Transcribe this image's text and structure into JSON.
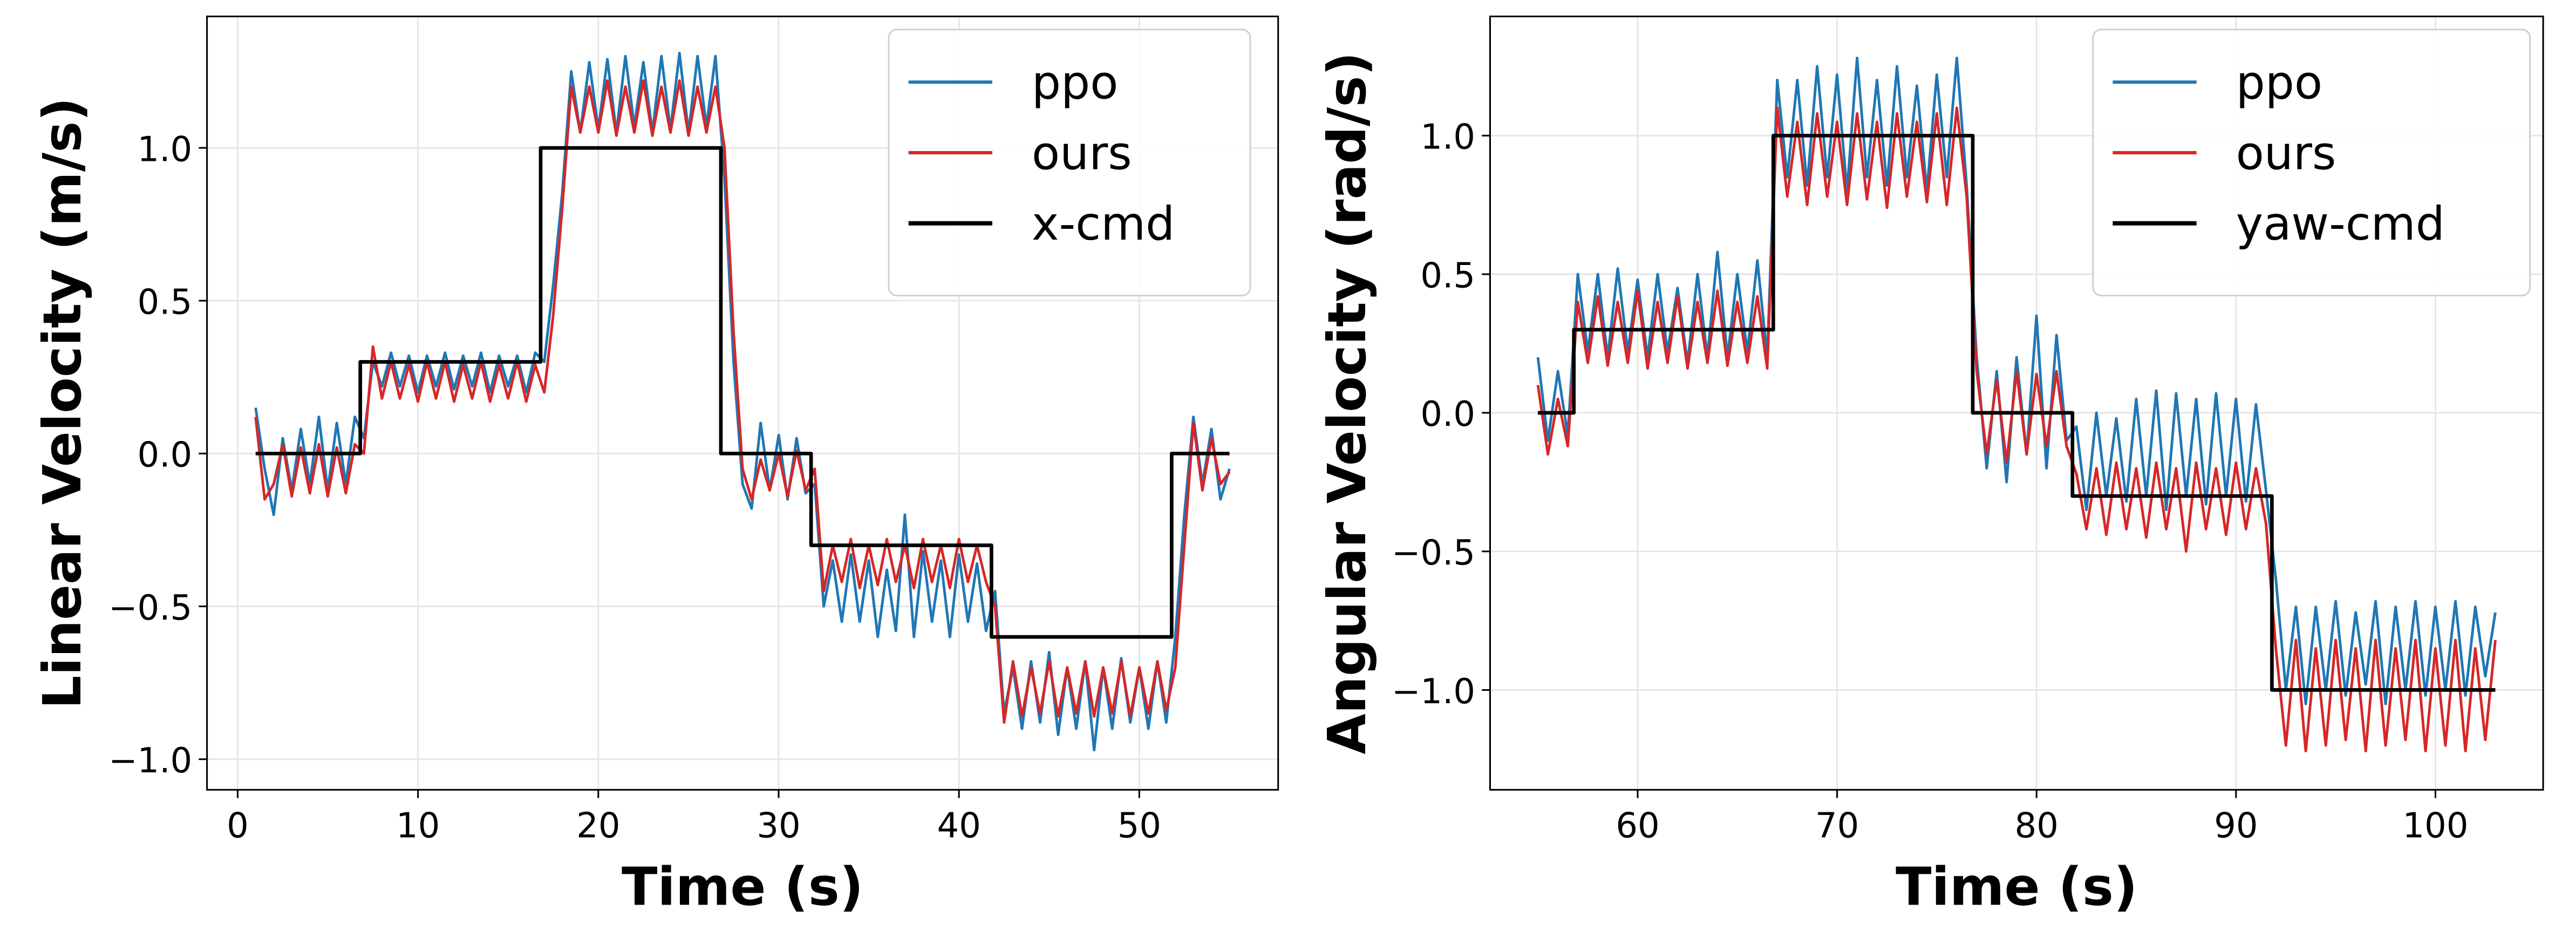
{
  "chart_data": [
    {
      "type": "line",
      "xlabel": "Time (s)",
      "ylabel": "Linear Velocity (m/s)",
      "xlim": [
        -1.7,
        57.7
      ],
      "ylim": [
        -1.1,
        1.43
      ],
      "grid": true,
      "legend_position": "top-right",
      "xticks": [
        0,
        10,
        20,
        30,
        40,
        50
      ],
      "xtick_labels": [
        "0",
        "10",
        "20",
        "30",
        "40",
        "50"
      ],
      "yticks": [
        -1.0,
        -0.5,
        0.0,
        0.5,
        1.0
      ],
      "ytick_labels": [
        "−1.0",
        "−0.5",
        "0.0",
        "0.5",
        "1.0"
      ],
      "x": [
        1,
        1.5,
        2,
        2.5,
        3,
        3.5,
        4,
        4.5,
        5,
        5.5,
        6,
        6.5,
        7,
        7.5,
        8,
        8.5,
        9,
        9.5,
        10,
        10.5,
        11,
        11.5,
        12,
        12.5,
        13,
        13.5,
        14,
        14.5,
        15,
        15.5,
        16,
        16.5,
        17,
        17.5,
        18,
        18.5,
        19,
        19.5,
        20,
        20.5,
        21,
        21.5,
        22,
        22.5,
        23,
        23.5,
        24,
        24.5,
        25,
        25.5,
        26,
        26.5,
        27,
        27.5,
        28,
        28.5,
        29,
        29.5,
        30,
        30.5,
        31,
        31.5,
        32,
        32.5,
        33,
        33.5,
        34,
        34.5,
        35,
        35.5,
        36,
        36.5,
        37,
        37.5,
        38,
        38.5,
        39,
        39.5,
        40,
        40.5,
        41,
        41.5,
        42,
        42.5,
        43,
        43.5,
        44,
        44.5,
        45,
        45.5,
        46,
        46.5,
        47,
        47.5,
        48,
        48.5,
        49,
        49.5,
        50,
        50.5,
        51,
        51.5,
        52,
        52.5,
        53,
        53.5,
        54,
        54.5,
        55
      ],
      "series": [
        {
          "name": "ppo",
          "color": "#1f77b4",
          "values": [
            0.15,
            -0.05,
            -0.2,
            0.05,
            -0.12,
            0.08,
            -0.1,
            0.12,
            -0.12,
            0.1,
            -0.1,
            0.12,
            0.05,
            0.3,
            0.22,
            0.33,
            0.22,
            0.32,
            0.2,
            0.32,
            0.22,
            0.33,
            0.21,
            0.32,
            0.22,
            0.33,
            0.2,
            0.32,
            0.22,
            0.32,
            0.2,
            0.33,
            0.3,
            0.55,
            0.85,
            1.25,
            1.05,
            1.28,
            1.06,
            1.29,
            1.05,
            1.3,
            1.07,
            1.28,
            1.05,
            1.3,
            1.06,
            1.31,
            1.05,
            1.3,
            1.07,
            1.3,
            0.9,
            0.3,
            -0.1,
            -0.18,
            0.1,
            -0.12,
            0.06,
            -0.15,
            0.05,
            -0.13,
            -0.1,
            -0.5,
            -0.35,
            -0.55,
            -0.33,
            -0.55,
            -0.35,
            -0.6,
            -0.38,
            -0.58,
            -0.2,
            -0.6,
            -0.32,
            -0.55,
            -0.35,
            -0.6,
            -0.33,
            -0.55,
            -0.36,
            -0.58,
            -0.45,
            -0.85,
            -0.7,
            -0.9,
            -0.68,
            -0.88,
            -0.65,
            -0.92,
            -0.7,
            -0.9,
            -0.68,
            -0.97,
            -0.7,
            -0.9,
            -0.67,
            -0.88,
            -0.7,
            -0.9,
            -0.68,
            -0.88,
            -0.6,
            -0.2,
            0.12,
            -0.1,
            0.08,
            -0.15,
            -0.05
          ]
        },
        {
          "name": "ours",
          "color": "#d62728",
          "values": [
            0.12,
            -0.15,
            -0.1,
            0.03,
            -0.14,
            0.02,
            -0.13,
            0.03,
            -0.14,
            0.02,
            -0.13,
            0.03,
            0.0,
            0.35,
            0.18,
            0.3,
            0.18,
            0.29,
            0.17,
            0.3,
            0.18,
            0.3,
            0.17,
            0.29,
            0.18,
            0.3,
            0.17,
            0.29,
            0.18,
            0.3,
            0.17,
            0.29,
            0.2,
            0.45,
            0.8,
            1.2,
            1.05,
            1.2,
            1.05,
            1.22,
            1.04,
            1.2,
            1.05,
            1.22,
            1.04,
            1.2,
            1.05,
            1.22,
            1.04,
            1.2,
            1.05,
            1.2,
            1.0,
            0.4,
            -0.05,
            -0.15,
            -0.02,
            -0.12,
            0.0,
            -0.14,
            0.01,
            -0.12,
            -0.05,
            -0.45,
            -0.3,
            -0.42,
            -0.28,
            -0.44,
            -0.3,
            -0.43,
            -0.28,
            -0.42,
            -0.3,
            -0.44,
            -0.28,
            -0.42,
            -0.3,
            -0.44,
            -0.28,
            -0.42,
            -0.3,
            -0.42,
            -0.5,
            -0.88,
            -0.68,
            -0.86,
            -0.7,
            -0.85,
            -0.68,
            -0.86,
            -0.7,
            -0.85,
            -0.68,
            -0.86,
            -0.7,
            -0.85,
            -0.68,
            -0.86,
            -0.7,
            -0.85,
            -0.68,
            -0.84,
            -0.7,
            -0.3,
            0.1,
            -0.12,
            0.05,
            -0.1,
            -0.06
          ]
        },
        {
          "name": "x-cmd",
          "color": "#000000",
          "step": true,
          "points": [
            [
              1,
              0
            ],
            [
              6.8,
              0
            ],
            [
              6.8,
              0.3
            ],
            [
              16.8,
              0.3
            ],
            [
              16.8,
              1.0
            ],
            [
              26.8,
              1.0
            ],
            [
              26.8,
              0
            ],
            [
              31.8,
              0
            ],
            [
              31.8,
              -0.3
            ],
            [
              41.8,
              -0.3
            ],
            [
              41.8,
              -0.6
            ],
            [
              51.8,
              -0.6
            ],
            [
              51.8,
              0
            ],
            [
              55,
              0
            ]
          ]
        }
      ]
    },
    {
      "type": "line",
      "xlabel": "Time (s)",
      "ylabel": "Angular Velocity (rad/s)",
      "xlim": [
        52.6,
        105.4
      ],
      "ylim": [
        -1.36,
        1.43
      ],
      "grid": true,
      "legend_position": "top-right",
      "xticks": [
        60,
        70,
        80,
        90,
        100
      ],
      "xtick_labels": [
        "60",
        "70",
        "80",
        "90",
        "100"
      ],
      "yticks": [
        -1.0,
        -0.5,
        0.0,
        0.5,
        1.0
      ],
      "ytick_labels": [
        "−1.0",
        "−0.5",
        "0.0",
        "0.5",
        "1.0"
      ],
      "x": [
        55,
        55.5,
        56,
        56.5,
        57,
        57.5,
        58,
        58.5,
        59,
        59.5,
        60,
        60.5,
        61,
        61.5,
        62,
        62.5,
        63,
        63.5,
        64,
        64.5,
        65,
        65.5,
        66,
        66.5,
        67,
        67.5,
        68,
        68.5,
        69,
        69.5,
        70,
        70.5,
        71,
        71.5,
        72,
        72.5,
        73,
        73.5,
        74,
        74.5,
        75,
        75.5,
        76,
        76.5,
        77,
        77.5,
        78,
        78.5,
        79,
        79.5,
        80,
        80.5,
        81,
        81.5,
        82,
        82.5,
        83,
        83.5,
        84,
        84.5,
        85,
        85.5,
        86,
        86.5,
        87,
        87.5,
        88,
        88.5,
        89,
        89.5,
        90,
        90.5,
        91,
        91.5,
        92,
        92.5,
        93,
        93.5,
        94,
        94.5,
        95,
        95.5,
        96,
        96.5,
        97,
        97.5,
        98,
        98.5,
        99,
        99.5,
        100,
        100.5,
        101,
        101.5,
        102,
        102.5,
        103
      ],
      "series": [
        {
          "name": "ppo",
          "color": "#1f77b4",
          "values": [
            0.2,
            -0.1,
            0.15,
            -0.08,
            0.5,
            0.22,
            0.5,
            0.2,
            0.52,
            0.22,
            0.48,
            0.2,
            0.5,
            0.22,
            0.45,
            0.18,
            0.5,
            0.2,
            0.58,
            0.2,
            0.5,
            0.22,
            0.55,
            0.2,
            1.2,
            0.85,
            1.2,
            0.82,
            1.25,
            0.85,
            1.22,
            0.8,
            1.28,
            0.85,
            1.2,
            0.82,
            1.25,
            0.85,
            1.18,
            0.8,
            1.22,
            0.85,
            1.28,
            0.82,
            0.2,
            -0.2,
            0.15,
            -0.25,
            0.2,
            -0.15,
            0.35,
            -0.2,
            0.28,
            -0.1,
            -0.05,
            -0.35,
            0.0,
            -0.3,
            -0.02,
            -0.32,
            0.05,
            -0.3,
            0.08,
            -0.35,
            0.07,
            -0.3,
            0.05,
            -0.33,
            0.07,
            -0.3,
            0.05,
            -0.32,
            0.03,
            -0.28,
            -0.6,
            -1.0,
            -0.7,
            -1.05,
            -0.7,
            -1.0,
            -0.68,
            -1.02,
            -0.72,
            -0.98,
            -0.68,
            -1.05,
            -0.7,
            -1.0,
            -0.68,
            -1.02,
            -0.7,
            -1.0,
            -0.68,
            -1.02,
            -0.7,
            -0.95,
            -0.72
          ]
        },
        {
          "name": "ours",
          "color": "#d62728",
          "values": [
            0.1,
            -0.15,
            0.05,
            -0.12,
            0.4,
            0.18,
            0.42,
            0.17,
            0.4,
            0.18,
            0.44,
            0.16,
            0.4,
            0.18,
            0.42,
            0.16,
            0.4,
            0.18,
            0.44,
            0.17,
            0.4,
            0.18,
            0.42,
            0.16,
            1.1,
            0.78,
            1.05,
            0.75,
            1.08,
            0.78,
            1.05,
            0.75,
            1.08,
            0.77,
            1.05,
            0.74,
            1.08,
            0.78,
            1.05,
            0.76,
            1.08,
            0.75,
            1.1,
            0.78,
            0.15,
            -0.15,
            0.12,
            -0.18,
            0.15,
            -0.15,
            0.14,
            -0.12,
            0.15,
            -0.12,
            -0.22,
            -0.42,
            -0.2,
            -0.44,
            -0.18,
            -0.42,
            -0.2,
            -0.45,
            -0.18,
            -0.42,
            -0.2,
            -0.5,
            -0.18,
            -0.42,
            -0.2,
            -0.44,
            -0.18,
            -0.42,
            -0.2,
            -0.4,
            -0.85,
            -1.2,
            -0.82,
            -1.22,
            -0.85,
            -1.2,
            -0.82,
            -1.18,
            -0.85,
            -1.22,
            -0.82,
            -1.2,
            -0.85,
            -1.18,
            -0.82,
            -1.22,
            -0.85,
            -1.2,
            -0.82,
            -1.22,
            -0.85,
            -1.18,
            -0.82
          ]
        },
        {
          "name": "yaw-cmd",
          "color": "#000000",
          "step": true,
          "points": [
            [
              55,
              0
            ],
            [
              56.8,
              0
            ],
            [
              56.8,
              0.3
            ],
            [
              66.8,
              0.3
            ],
            [
              66.8,
              1.0
            ],
            [
              76.8,
              1.0
            ],
            [
              76.8,
              0
            ],
            [
              81.8,
              0
            ],
            [
              81.8,
              -0.3
            ],
            [
              91.8,
              -0.3
            ],
            [
              91.8,
              -1.0
            ],
            [
              103,
              -1.0
            ]
          ]
        }
      ]
    }
  ]
}
